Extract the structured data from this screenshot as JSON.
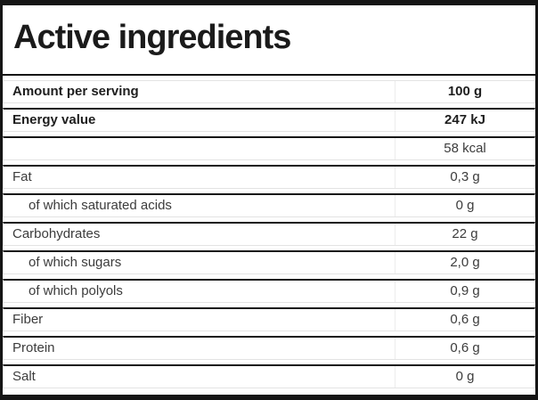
{
  "panel": {
    "title": "Active ingredients",
    "table": {
      "value_column_header": "100 g",
      "rows": [
        {
          "label": "Amount per serving",
          "value": "100 g",
          "bold": true,
          "indent": false
        },
        {
          "label": "Energy value",
          "value": "247 kJ",
          "bold": true,
          "indent": false
        },
        {
          "label": "",
          "value": "58 kcal",
          "bold": false,
          "indent": false
        },
        {
          "label": "Fat",
          "value": "0,3 g",
          "bold": false,
          "indent": false
        },
        {
          "label": "of which saturated acids",
          "value": "0 g",
          "bold": false,
          "indent": true
        },
        {
          "label": "Carbohydrates",
          "value": "22 g",
          "bold": false,
          "indent": false
        },
        {
          "label": "of which sugars",
          "value": "2,0 g",
          "bold": false,
          "indent": true
        },
        {
          "label": "of which polyols",
          "value": "0,9 g",
          "bold": false,
          "indent": true
        },
        {
          "label": "Fiber",
          "value": "0,6 g",
          "bold": false,
          "indent": false
        },
        {
          "label": "Protein",
          "value": "0,6 g",
          "bold": false,
          "indent": false
        },
        {
          "label": "Salt",
          "value": "0 g",
          "bold": false,
          "indent": false
        }
      ]
    }
  },
  "colors": {
    "frame_black": "#151515",
    "divider_gray": "#e3e3e3",
    "text_regular": "#3c3c3c",
    "text_bold": "#1e1e1e",
    "background": "#ffffff"
  }
}
